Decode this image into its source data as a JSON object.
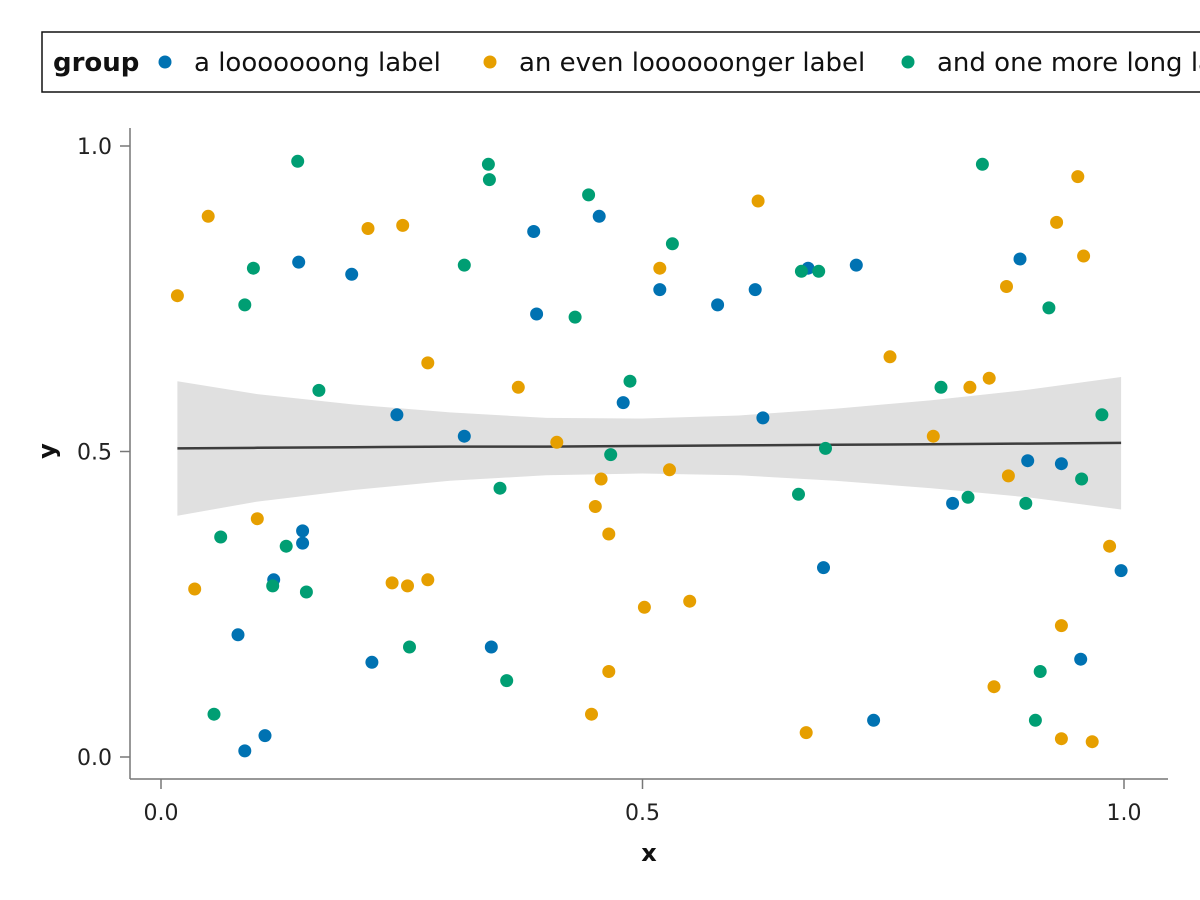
{
  "chart_data": {
    "type": "scatter",
    "xlabel": "x",
    "ylabel": "y",
    "xlim": [
      0,
      1
    ],
    "ylim": [
      0,
      1
    ],
    "xticks": [
      {
        "value": 0.0,
        "label": "0.0"
      },
      {
        "value": 0.5,
        "label": "0.5"
      },
      {
        "value": 1.0,
        "label": "1.0"
      }
    ],
    "yticks": [
      {
        "value": 0.0,
        "label": "0.0"
      },
      {
        "value": 0.5,
        "label": "0.5"
      },
      {
        "value": 1.0,
        "label": "1.0"
      }
    ],
    "grid": false,
    "legend": {
      "title": "group",
      "placement": "top",
      "entries": [
        "a looooooong label",
        "an even loooooonger label",
        "and one more long label"
      ]
    },
    "colors": [
      "#0072B2",
      "#E69F00",
      "#009E73"
    ],
    "band_color": "#e0e0e0",
    "line_color": "#3d3d3d",
    "series": [
      {
        "name": "a looooooong label",
        "points": [
          [
            0.08,
            0.2
          ],
          [
            0.087,
            0.01
          ],
          [
            0.108,
            0.035
          ],
          [
            0.117,
            0.29
          ],
          [
            0.143,
            0.81
          ],
          [
            0.147,
            0.37
          ],
          [
            0.147,
            0.35
          ],
          [
            0.198,
            0.79
          ],
          [
            0.219,
            0.155
          ],
          [
            0.245,
            0.56
          ],
          [
            0.315,
            0.525
          ],
          [
            0.343,
            0.18
          ],
          [
            0.387,
            0.86
          ],
          [
            0.39,
            0.725
          ],
          [
            0.455,
            0.885
          ],
          [
            0.48,
            0.58
          ],
          [
            0.518,
            0.765
          ],
          [
            0.578,
            0.74
          ],
          [
            0.617,
            0.765
          ],
          [
            0.625,
            0.555
          ],
          [
            0.672,
            0.8
          ],
          [
            0.688,
            0.31
          ],
          [
            0.722,
            0.805
          ],
          [
            0.74,
            0.06
          ],
          [
            0.822,
            0.415
          ],
          [
            0.892,
            0.815
          ],
          [
            0.9,
            0.485
          ],
          [
            0.935,
            0.48
          ],
          [
            0.955,
            0.16
          ],
          [
            0.997,
            0.305
          ]
        ]
      },
      {
        "name": "an even loooooonger label",
        "points": [
          [
            0.017,
            0.755
          ],
          [
            0.035,
            0.275
          ],
          [
            0.049,
            0.885
          ],
          [
            0.1,
            0.39
          ],
          [
            0.215,
            0.865
          ],
          [
            0.24,
            0.285
          ],
          [
            0.251,
            0.87
          ],
          [
            0.256,
            0.28
          ],
          [
            0.277,
            0.29
          ],
          [
            0.277,
            0.645
          ],
          [
            0.371,
            0.605
          ],
          [
            0.411,
            0.515
          ],
          [
            0.447,
            0.07
          ],
          [
            0.451,
            0.41
          ],
          [
            0.457,
            0.455
          ],
          [
            0.465,
            0.365
          ],
          [
            0.465,
            0.14
          ],
          [
            0.502,
            0.245
          ],
          [
            0.518,
            0.8
          ],
          [
            0.528,
            0.47
          ],
          [
            0.549,
            0.255
          ],
          [
            0.62,
            0.91
          ],
          [
            0.67,
            0.04
          ],
          [
            0.757,
            0.655
          ],
          [
            0.802,
            0.525
          ],
          [
            0.84,
            0.605
          ],
          [
            0.86,
            0.62
          ],
          [
            0.865,
            0.115
          ],
          [
            0.878,
            0.77
          ],
          [
            0.88,
            0.46
          ],
          [
            0.93,
            0.875
          ],
          [
            0.935,
            0.215
          ],
          [
            0.935,
            0.03
          ],
          [
            0.952,
            0.95
          ],
          [
            0.958,
            0.82
          ],
          [
            0.967,
            0.025
          ],
          [
            0.985,
            0.345
          ]
        ]
      },
      {
        "name": "and one more long label",
        "points": [
          [
            0.055,
            0.07
          ],
          [
            0.062,
            0.36
          ],
          [
            0.087,
            0.74
          ],
          [
            0.096,
            0.8
          ],
          [
            0.116,
            0.28
          ],
          [
            0.13,
            0.345
          ],
          [
            0.142,
            0.975
          ],
          [
            0.151,
            0.27
          ],
          [
            0.164,
            0.6
          ],
          [
            0.258,
            0.18
          ],
          [
            0.315,
            0.805
          ],
          [
            0.34,
            0.97
          ],
          [
            0.341,
            0.945
          ],
          [
            0.352,
            0.44
          ],
          [
            0.359,
            0.125
          ],
          [
            0.43,
            0.72
          ],
          [
            0.444,
            0.92
          ],
          [
            0.487,
            0.615
          ],
          [
            0.467,
            0.495
          ],
          [
            0.531,
            0.84
          ],
          [
            0.662,
            0.43
          ],
          [
            0.665,
            0.795
          ],
          [
            0.683,
            0.795
          ],
          [
            0.69,
            0.505
          ],
          [
            0.81,
            0.605
          ],
          [
            0.838,
            0.425
          ],
          [
            0.853,
            0.97
          ],
          [
            0.898,
            0.415
          ],
          [
            0.908,
            0.06
          ],
          [
            0.913,
            0.14
          ],
          [
            0.922,
            0.735
          ],
          [
            0.956,
            0.455
          ],
          [
            0.977,
            0.56
          ]
        ]
      }
    ],
    "fit": {
      "type": "linear",
      "x": [
        0.017,
        0.1,
        0.2,
        0.3,
        0.4,
        0.5,
        0.6,
        0.7,
        0.8,
        0.9,
        0.997
      ],
      "y": [
        0.505,
        0.506,
        0.507,
        0.508,
        0.508,
        0.509,
        0.51,
        0.511,
        0.512,
        0.513,
        0.514
      ],
      "lower": [
        0.395,
        0.418,
        0.437,
        0.452,
        0.461,
        0.464,
        0.461,
        0.452,
        0.44,
        0.425,
        0.405
      ],
      "upper": [
        0.615,
        0.594,
        0.577,
        0.564,
        0.555,
        0.554,
        0.559,
        0.57,
        0.584,
        0.601,
        0.622
      ]
    }
  }
}
